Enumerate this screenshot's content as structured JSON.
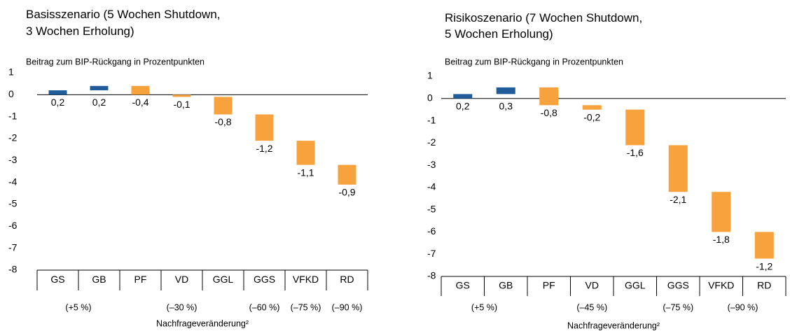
{
  "chart_data": [
    {
      "type": "waterfall",
      "title": "Basisszenario (5 Wochen Shutdown, 3 Wochen Erholung)",
      "subtitle": "Beitrag zum BIP-Rückgang in Prozentpunkten",
      "x_label": "Nachfrageveränderung²",
      "categories": [
        "GS",
        "GB",
        "PF",
        "VD",
        "GGL",
        "GGS",
        "VFKD",
        "RD"
      ],
      "values": [
        0.2,
        0.2,
        -0.4,
        -0.1,
        -0.8,
        -1.2,
        -1.1,
        -0.9
      ],
      "value_labels": [
        "0,2",
        "0,2",
        "-0,4",
        "-0,1",
        "-0,8",
        "-1,2",
        "-1,1",
        "-0,9"
      ],
      "positive_color": "#1f5c99",
      "negative_color": "#f7a23c",
      "ylim": [
        -8,
        1
      ],
      "yticks": [
        -8,
        -7,
        -6,
        -5,
        -4,
        -3,
        -2,
        -1,
        0,
        1
      ],
      "grid": false,
      "demand_groups": [
        {
          "label": "(+5 %)",
          "start": "GS",
          "end": "GB"
        },
        {
          "label": "(–30 %)",
          "start": "PF",
          "end": "GGL"
        },
        {
          "label": "(–60 %)",
          "start": "GGS",
          "end": "GGS"
        },
        {
          "label": "(–75 %)",
          "start": "VFKD",
          "end": "VFKD"
        },
        {
          "label": "(–90 %)",
          "start": "RD",
          "end": "RD"
        }
      ]
    },
    {
      "type": "waterfall",
      "title": "Risikoszenario (7 Wochen Shutdown, 5 Wochen Erholung)",
      "subtitle": "Beitrag zum BIP-Rückgang in Prozentpunkten",
      "x_label": "Nachfrageveränderung²",
      "categories": [
        "GS",
        "GB",
        "PF",
        "VD",
        "GGL",
        "GGS",
        "VFKD",
        "RD"
      ],
      "values": [
        0.2,
        0.3,
        -0.8,
        -0.2,
        -1.6,
        -2.1,
        -1.8,
        -1.2
      ],
      "value_labels": [
        "0,2",
        "0,3",
        "-0,8",
        "-0,2",
        "-1,6",
        "-2,1",
        "-1,8",
        "-1,2"
      ],
      "positive_color": "#1f5c99",
      "negative_color": "#f7a23c",
      "ylim": [
        -8,
        1
      ],
      "yticks": [
        -8,
        -7,
        -6,
        -5,
        -4,
        -3,
        -2,
        -1,
        0,
        1
      ],
      "grid": false,
      "demand_groups": [
        {
          "label": "(+5 %)",
          "start": "GS",
          "end": "GB"
        },
        {
          "label": "(–45 %)",
          "start": "PF",
          "end": "GGL"
        },
        {
          "label": "(–75 %)",
          "start": "GGS",
          "end": "GGS"
        },
        {
          "label": "(–90 %)",
          "start": "VFKD",
          "end": "RD"
        }
      ]
    }
  ]
}
